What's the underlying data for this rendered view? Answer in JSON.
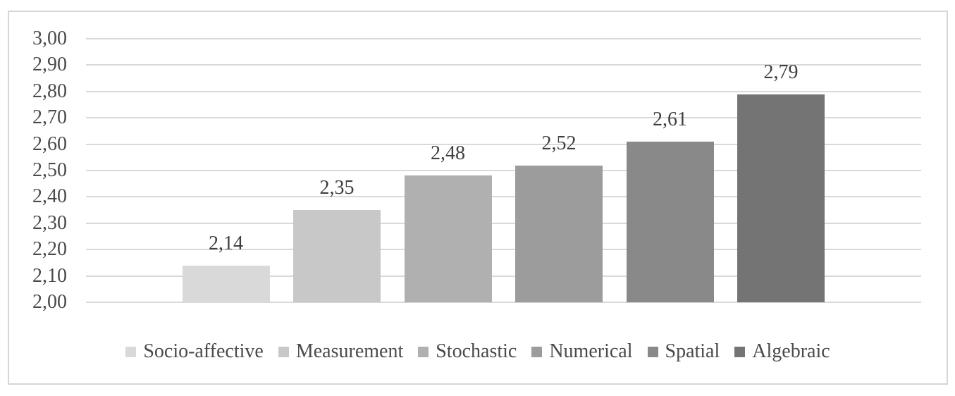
{
  "chart_data": {
    "type": "bar",
    "title": "",
    "xlabel": "",
    "ylabel": "",
    "categories": [
      "Socio-affective",
      "Measurement",
      "Stochastic",
      "Numerical",
      "Spatial",
      "Algebraic"
    ],
    "values": [
      2.14,
      2.35,
      2.48,
      2.52,
      2.61,
      2.79
    ],
    "data_labels": [
      "2,14",
      "2,35",
      "2,48",
      "2,52",
      "2,61",
      "2,79"
    ],
    "series_colors": [
      "#D9D9D9",
      "#C8C8C8",
      "#B0B0B0",
      "#9C9C9C",
      "#898989",
      "#747474"
    ],
    "y_axis": {
      "min": 2.0,
      "max": 3.0,
      "step": 0.1,
      "tick_labels": [
        "3,00",
        "2,90",
        "2,80",
        "2,70",
        "2,60",
        "2,50",
        "2,40",
        "2,30",
        "2,20",
        "2,10",
        "2,00"
      ]
    },
    "grid": true,
    "legend_position": "bottom",
    "colors": {
      "gridline": "#D9D9D9",
      "frame_border": "#D6D6D6",
      "axis_text": "#4A4A4A",
      "data_label_text": "#3F3F3F",
      "background": "#FFFFFF"
    }
  }
}
